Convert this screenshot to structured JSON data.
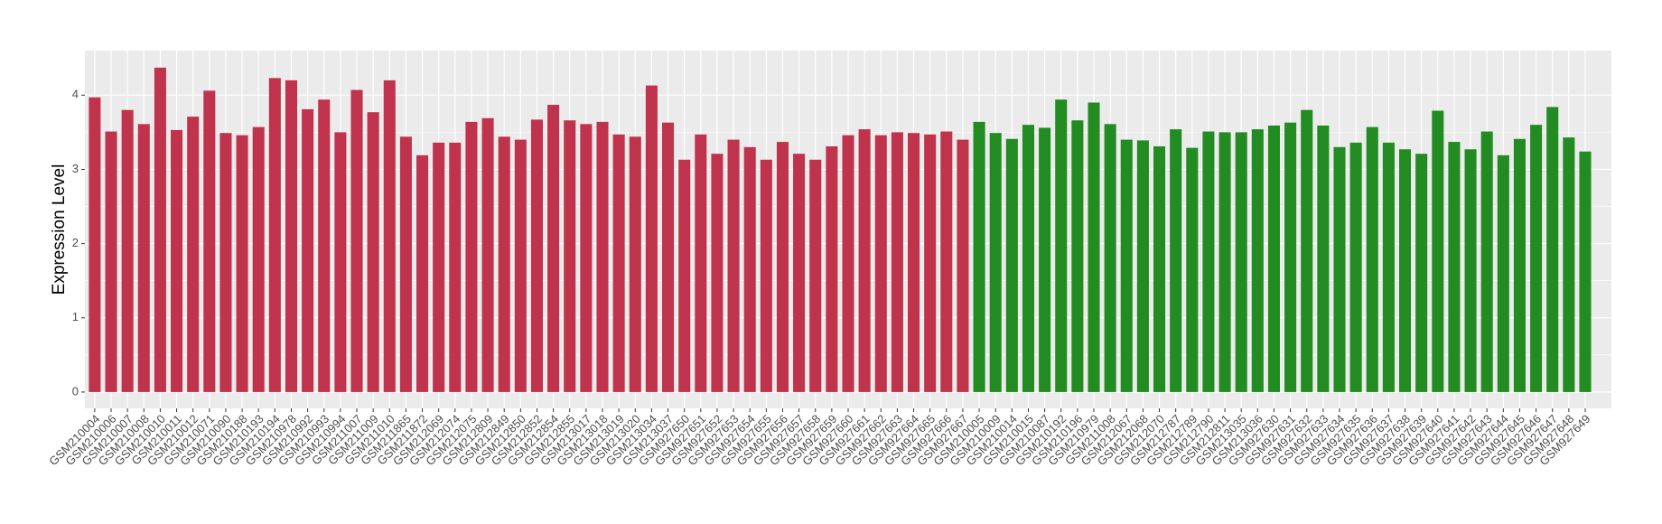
{
  "chart_data": {
    "type": "bar",
    "y_label": "Expression Level",
    "categories": [
      "GSM210004",
      "GSM210006",
      "GSM210007",
      "GSM210008",
      "GSM210010",
      "GSM210011",
      "GSM210012",
      "GSM210071",
      "GSM210090",
      "GSM210188",
      "GSM210193",
      "GSM210194",
      "GSM210978",
      "GSM210992",
      "GSM210993",
      "GSM210994",
      "GSM211007",
      "GSM211009",
      "GSM211010",
      "GSM211865",
      "GSM211872",
      "GSM212069",
      "GSM212074",
      "GSM212075",
      "GSM212809",
      "GSM212849",
      "GSM212850",
      "GSM212852",
      "GSM212854",
      "GSM212855",
      "GSM213017",
      "GSM213018",
      "GSM213019",
      "GSM213020",
      "GSM213034",
      "GSM213037",
      "GSM927650",
      "GSM927651",
      "GSM927652",
      "GSM927653",
      "GSM927654",
      "GSM927655",
      "GSM927656",
      "GSM927657",
      "GSM927658",
      "GSM927659",
      "GSM927660",
      "GSM927661",
      "GSM927662",
      "GSM927663",
      "GSM927664",
      "GSM927665",
      "GSM927666",
      "GSM927667",
      "GSM210005",
      "GSM210009",
      "GSM210014",
      "GSM210015",
      "GSM210087",
      "GSM210192",
      "GSM210196",
      "GSM210979",
      "GSM211008",
      "GSM212067",
      "GSM212068",
      "GSM212070",
      "GSM212787",
      "GSM212789",
      "GSM212790",
      "GSM212811",
      "GSM213035",
      "GSM213036",
      "GSM927630",
      "GSM927631",
      "GSM927632",
      "GSM927633",
      "GSM927634",
      "GSM927635",
      "GSM927636",
      "GSM927637",
      "GSM927638",
      "GSM927639",
      "GSM927640",
      "GSM927641",
      "GSM927642",
      "GSM927643",
      "GSM927644",
      "GSM927645",
      "GSM927646",
      "GSM927647",
      "GSM927648",
      "GSM927649"
    ],
    "series": [
      {
        "color": "#c0334d",
        "values": [
          3.97,
          3.51,
          3.8,
          3.61,
          4.37,
          3.53,
          3.71,
          4.06,
          3.49,
          3.46,
          3.57,
          4.23,
          4.2,
          3.81,
          3.94,
          3.5,
          4.07,
          3.77,
          4.2,
          3.44,
          3.19,
          3.36,
          3.36,
          3.64,
          3.69,
          3.44,
          3.4,
          3.67,
          3.87,
          3.66,
          3.61,
          3.64,
          3.47,
          3.44,
          4.13,
          3.63,
          3.13,
          3.47,
          3.21,
          3.4,
          3.3,
          3.13,
          3.37,
          3.21,
          3.13,
          3.31,
          3.46,
          3.54,
          3.46,
          3.5,
          3.49,
          3.47,
          3.51,
          3.4,
          null,
          null,
          null,
          null,
          null,
          null,
          null,
          null,
          null,
          null,
          null,
          null,
          null,
          null,
          null,
          null,
          null,
          null,
          null,
          null,
          null,
          null,
          null,
          null,
          null,
          null,
          null,
          null,
          null,
          null,
          null,
          null,
          null,
          null,
          null,
          null,
          null,
          null
        ]
      },
      {
        "color": "#228b22",
        "values": [
          null,
          null,
          null,
          null,
          null,
          null,
          null,
          null,
          null,
          null,
          null,
          null,
          null,
          null,
          null,
          null,
          null,
          null,
          null,
          null,
          null,
          null,
          null,
          null,
          null,
          null,
          null,
          null,
          null,
          null,
          null,
          null,
          null,
          null,
          null,
          null,
          null,
          null,
          null,
          null,
          null,
          null,
          null,
          null,
          null,
          null,
          null,
          null,
          null,
          null,
          null,
          null,
          null,
          null,
          3.64,
          3.49,
          3.41,
          3.6,
          3.56,
          3.94,
          3.66,
          3.9,
          3.61,
          3.4,
          3.39,
          3.31,
          3.54,
          3.29,
          3.51,
          3.5,
          3.5,
          3.54,
          3.59,
          3.63,
          3.8,
          3.59,
          3.3,
          3.36,
          3.57,
          3.36,
          3.27,
          3.21,
          3.79,
          3.37,
          3.27,
          3.51,
          3.19,
          3.41,
          3.6,
          3.84,
          3.43,
          3.24
        ]
      }
    ],
    "ylim": [
      -0.22,
      4.6
    ],
    "yticks": [
      0,
      1,
      2,
      3,
      4
    ],
    "grid": true
  }
}
